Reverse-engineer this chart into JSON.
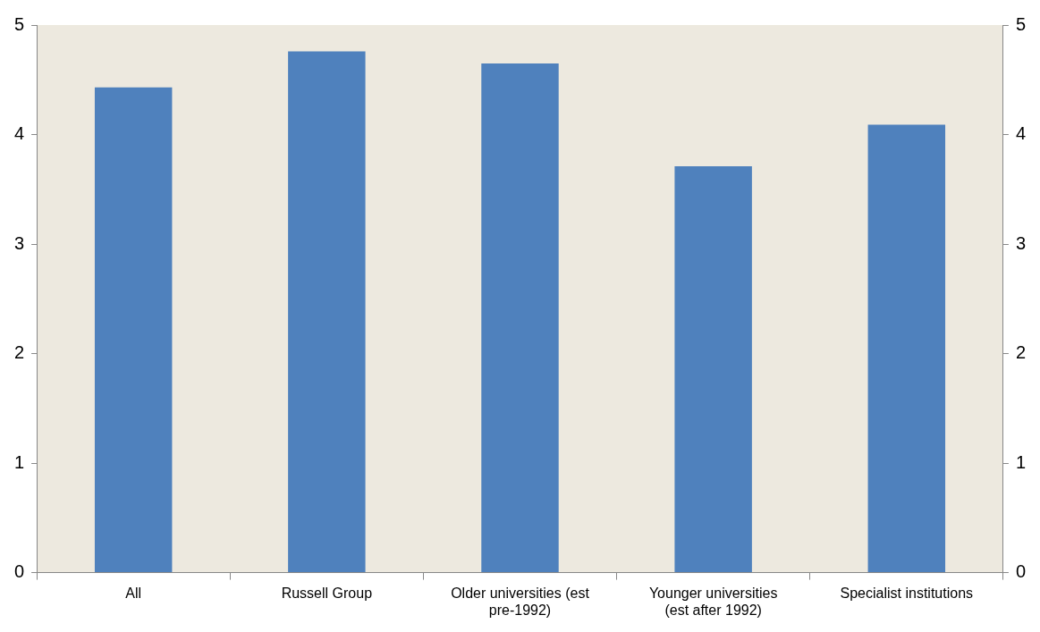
{
  "chart_data": {
    "type": "bar",
    "categories": [
      "All",
      "Russell Group",
      "Older universities (est pre-1992)",
      "Younger universities (est after 1992)",
      "Specialist institutions"
    ],
    "values": [
      4.43,
      4.76,
      4.65,
      3.71,
      4.09
    ],
    "color": "#4f81bd",
    "ylim": [
      0,
      5
    ],
    "yticks": [
      0,
      1,
      2,
      3,
      4,
      5
    ],
    "y2lim": [
      0,
      5
    ],
    "y2ticks": [
      0,
      1,
      2,
      3,
      4,
      5
    ],
    "grid": false,
    "legend": false
  }
}
